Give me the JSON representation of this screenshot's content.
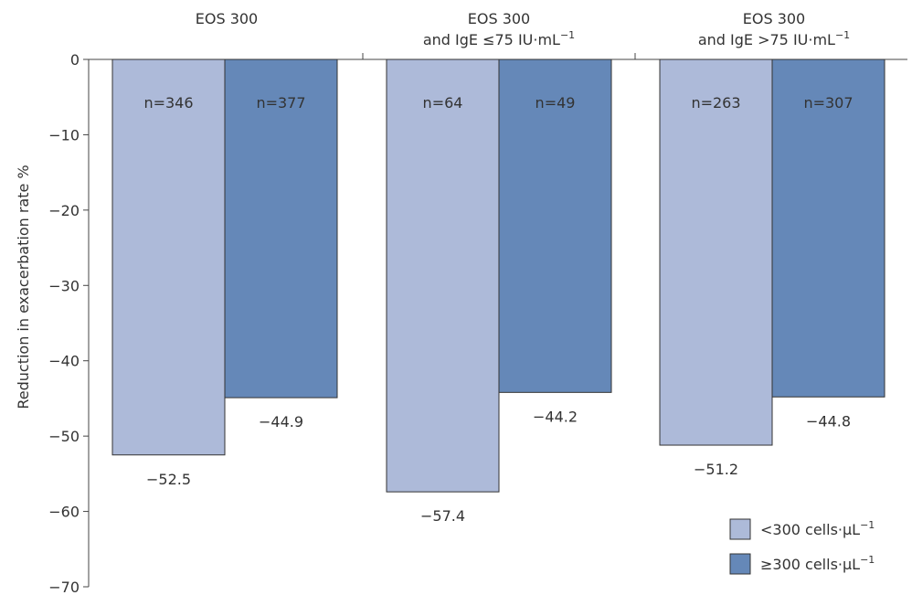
{
  "chart_data": {
    "type": "bar",
    "ylabel": "Reduction in exacerbation rate %",
    "ylim": [
      -70,
      0
    ],
    "yticks": [
      0,
      -10,
      -20,
      -30,
      -40,
      -50,
      -60,
      -70
    ],
    "ytick_labels": [
      "0",
      "−10",
      "−20",
      "−30",
      "−40",
      "−50",
      "−60",
      "−70"
    ],
    "categories": [
      {
        "line1": "EOS 300",
        "line2": "",
        "sup": ""
      },
      {
        "line1": "EOS 300",
        "line2": "and IgE ≤75 IU·mL",
        "sup": "−1"
      },
      {
        "line1": "EOS 300",
        "line2": "and IgE >75 IU·mL",
        "sup": "−1"
      }
    ],
    "series": [
      {
        "name": "<300 cells·µL",
        "name_sup": "−1",
        "color": "#adbad9",
        "values": [
          -52.5,
          -57.4,
          -51.2
        ],
        "value_labels": [
          "−52.5",
          "−57.4",
          "−51.2"
        ],
        "n_labels": [
          "n=346",
          "n=64",
          "n=263"
        ]
      },
      {
        "name": "≥300 cells·µL",
        "name_sup": "−1",
        "color": "#6588b8",
        "values": [
          -44.9,
          -44.2,
          -44.8
        ],
        "value_labels": [
          "−44.9",
          "−44.2",
          "−44.8"
        ],
        "n_labels": [
          "n=377",
          "n=49",
          "n=307"
        ]
      }
    ],
    "legend_position": "bottom-right",
    "grid": false
  }
}
